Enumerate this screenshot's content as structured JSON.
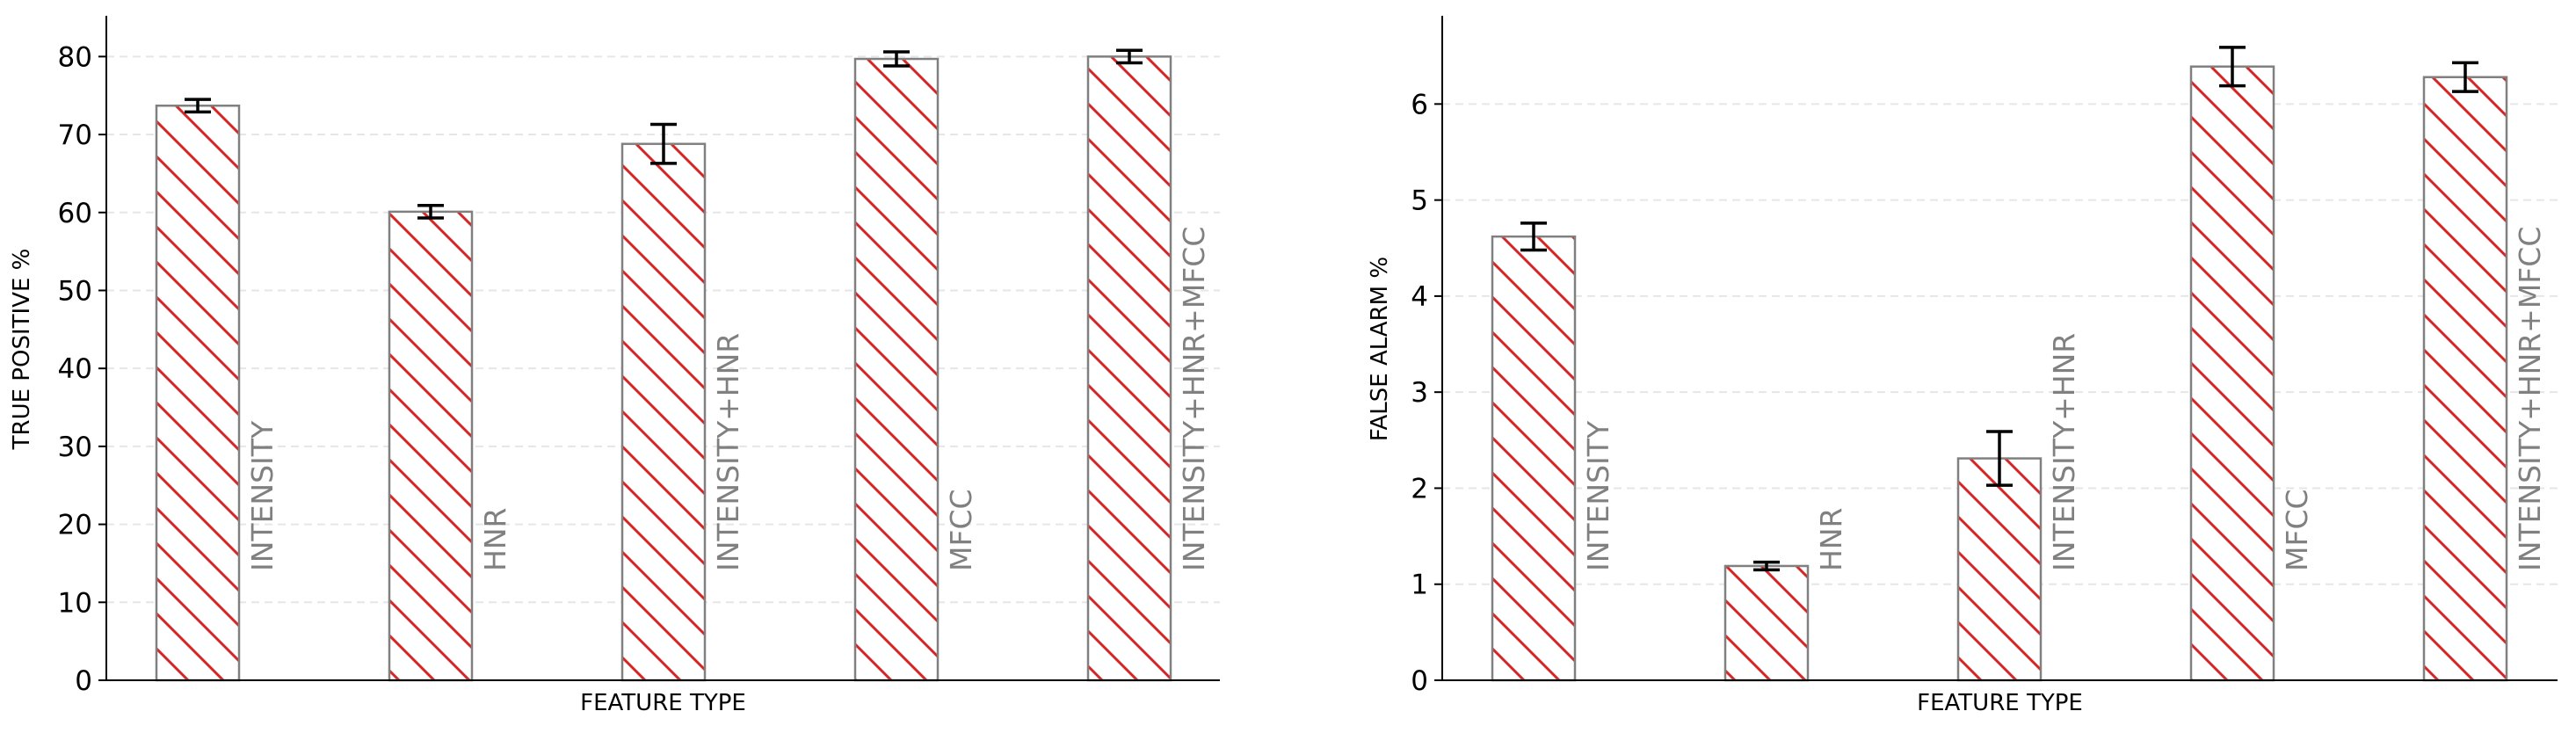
{
  "colors": {
    "hatch": "#d62728",
    "bar_edge": "#808080",
    "bar_fill": "#ffffff",
    "bar_label": "#808080",
    "grid": "#e6e6e6",
    "axis": "#000000",
    "error_bar": "#000000"
  },
  "chart_data": [
    {
      "type": "bar",
      "xlabel": "FEATURE TYPE",
      "ylabel": "TRUE POSITIVE %",
      "ylim": [
        0,
        85
      ],
      "yticks": [
        0,
        10,
        20,
        30,
        40,
        50,
        60,
        70,
        80
      ],
      "grid": "horizontal dashed",
      "bar_labels_rotated": true,
      "categories": [
        "INTENSITY",
        "HNR",
        "INTENSITY+HNR",
        "MFCC",
        "INTENSITY+HNR+MFCC"
      ],
      "values": [
        73.7,
        60.1,
        68.8,
        79.7,
        80.0
      ],
      "errors": [
        0.8,
        0.8,
        2.5,
        0.9,
        0.8
      ]
    },
    {
      "type": "bar",
      "xlabel": "FEATURE TYPE",
      "ylabel": "FALSE ALARM %",
      "ylim": [
        0,
        6.9
      ],
      "yticks": [
        0,
        1,
        2,
        3,
        4,
        5,
        6
      ],
      "grid": "horizontal dashed",
      "bar_labels_rotated": true,
      "categories": [
        "INTENSITY",
        "HNR",
        "INTENSITY+HNR",
        "MFCC",
        "INTENSITY+HNR+MFCC"
      ],
      "values": [
        4.62,
        1.19,
        2.31,
        6.39,
        6.28
      ],
      "errors": [
        0.14,
        0.04,
        0.28,
        0.2,
        0.15
      ]
    }
  ]
}
